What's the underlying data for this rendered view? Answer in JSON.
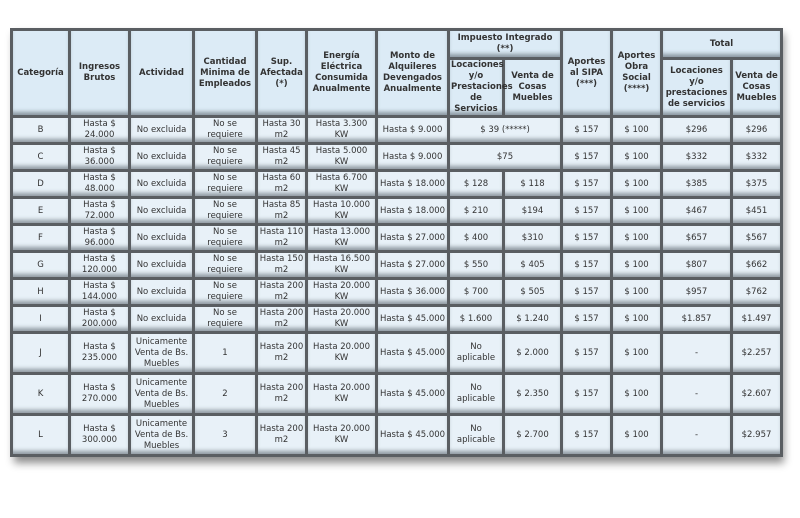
{
  "headers": {
    "categoria": "Categoría",
    "ingresos": "Ingresos Brutos",
    "actividad": "Actividad",
    "empleados": "Cantidad Minima de Empleados",
    "superficie": "Sup. Afectada (*)",
    "energia": "Energía Eléctrica Consumida Anualmente",
    "alquileres": "Monto de Alquileres Devengados Anualmente",
    "impuesto": "Impuesto Integrado (**)",
    "imp_loc": "Locaciones y/o Prestaciones de Servicios",
    "imp_venta": "Venta de Cosas Muebles",
    "sipa": "Aportes al SIPA (***)",
    "obra": "Aportes Obra Social (****)",
    "total": "Total",
    "tot_loc": "Locaciones y/o prestaciones de servicios",
    "tot_venta": "Venta de Cosas Muebles"
  },
  "rows": [
    {
      "cat": "B",
      "ing": "Hasta $ 24.000",
      "act": "No excluida",
      "emp": "No se requiere",
      "sup": "Hasta 30 m2",
      "ene": "Hasta 3.300 KW",
      "alq": "Hasta $ 9.000",
      "imp_merged": "$ 39 (*****)",
      "sipa": "$ 157",
      "obra": "$ 100",
      "tl": "$296",
      "tv": "$296"
    },
    {
      "cat": "C",
      "ing": "Hasta $ 36.000",
      "act": "No excluida",
      "emp": "No se requiere",
      "sup": "Hasta 45 m2",
      "ene": "Hasta 5.000 KW",
      "alq": "Hasta $ 9.000",
      "imp_merged": "$75",
      "sipa": "$ 157",
      "obra": "$ 100",
      "tl": "$332",
      "tv": "$332"
    },
    {
      "cat": "D",
      "ing": "Hasta $ 48.000",
      "act": "No excluida",
      "emp": "No se requiere",
      "sup": "Hasta 60 m2",
      "ene": "Hasta 6.700 KW",
      "alq": "Hasta $ 18.000",
      "il": "$ 128",
      "iv": "$ 118",
      "sipa": "$ 157",
      "obra": "$ 100",
      "tl": "$385",
      "tv": "$375"
    },
    {
      "cat": "E",
      "ing": "Hasta $ 72.000",
      "act": "No excluida",
      "emp": "No se requiere",
      "sup": "Hasta 85 m2",
      "ene": "Hasta 10.000 KW",
      "alq": "Hasta $ 18.000",
      "il": "$ 210",
      "iv": "$194",
      "sipa": "$ 157",
      "obra": "$ 100",
      "tl": "$467",
      "tv": "$451"
    },
    {
      "cat": "F",
      "ing": "Hasta $ 96.000",
      "act": "No excluida",
      "emp": "No se requiere",
      "sup": "Hasta 110 m2",
      "ene": "Hasta 13.000 KW",
      "alq": "Hasta $ 27.000",
      "il": "$ 400",
      "iv": "$310",
      "sipa": "$ 157",
      "obra": "$ 100",
      "tl": "$657",
      "tv": "$567"
    },
    {
      "cat": "G",
      "ing": "Hasta $ 120.000",
      "act": "No excluida",
      "emp": "No se requiere",
      "sup": "Hasta 150 m2",
      "ene": "Hasta 16.500 KW",
      "alq": "Hasta $ 27.000",
      "il": "$ 550",
      "iv": "$ 405",
      "sipa": "$ 157",
      "obra": "$ 100",
      "tl": "$807",
      "tv": "$662"
    },
    {
      "cat": "H",
      "ing": "Hasta $ 144.000",
      "act": "No excluida",
      "emp": "No se requiere",
      "sup": "Hasta 200 m2",
      "ene": "Hasta 20.000 KW",
      "alq": "Hasta $ 36.000",
      "il": "$ 700",
      "iv": "$ 505",
      "sipa": "$ 157",
      "obra": "$ 100",
      "tl": "$957",
      "tv": "$762"
    },
    {
      "cat": "I",
      "ing": "Hasta $ 200.000",
      "act": "No excluida",
      "emp": "No se requiere",
      "sup": "Hasta 200 m2",
      "ene": "Hasta 20.000 KW",
      "alq": "Hasta $ 45.000",
      "il": "$ 1.600",
      "iv": "$ 1.240",
      "sipa": "$ 157",
      "obra": "$ 100",
      "tl": "$1.857",
      "tv": "$1.497"
    },
    {
      "cat": "J",
      "ing": "Hasta $ 235.000",
      "act": "Unicamente Venta de Bs. Muebles",
      "emp": "1",
      "sup": "Hasta 200 m2",
      "ene": "Hasta 20.000 KW",
      "alq": "Hasta $ 45.000",
      "il": "No aplicable",
      "iv": "$ 2.000",
      "sipa": "$ 157",
      "obra": "$ 100",
      "tl": "-",
      "tv": "$2.257"
    },
    {
      "cat": "K",
      "ing": "Hasta $ 270.000",
      "act": "Unicamente Venta de Bs. Muebles",
      "emp": "2",
      "sup": "Hasta 200 m2",
      "ene": "Hasta 20.000 KW",
      "alq": "Hasta $ 45.000",
      "il": "No aplicable",
      "iv": "$ 2.350",
      "sipa": "$ 157",
      "obra": "$ 100",
      "tl": "-",
      "tv": "$2.607"
    },
    {
      "cat": "L",
      "ing": "Hasta $ 300.000",
      "act": "Unicamente Venta de Bs. Muebles",
      "emp": "3",
      "sup": "Hasta 200 m2",
      "ene": "Hasta 20.000 KW",
      "alq": "Hasta $ 45.000",
      "il": "No aplicable",
      "iv": "$ 2.700",
      "sipa": "$ 157",
      "obra": "$ 100",
      "tl": "-",
      "tv": "$2.957"
    }
  ]
}
